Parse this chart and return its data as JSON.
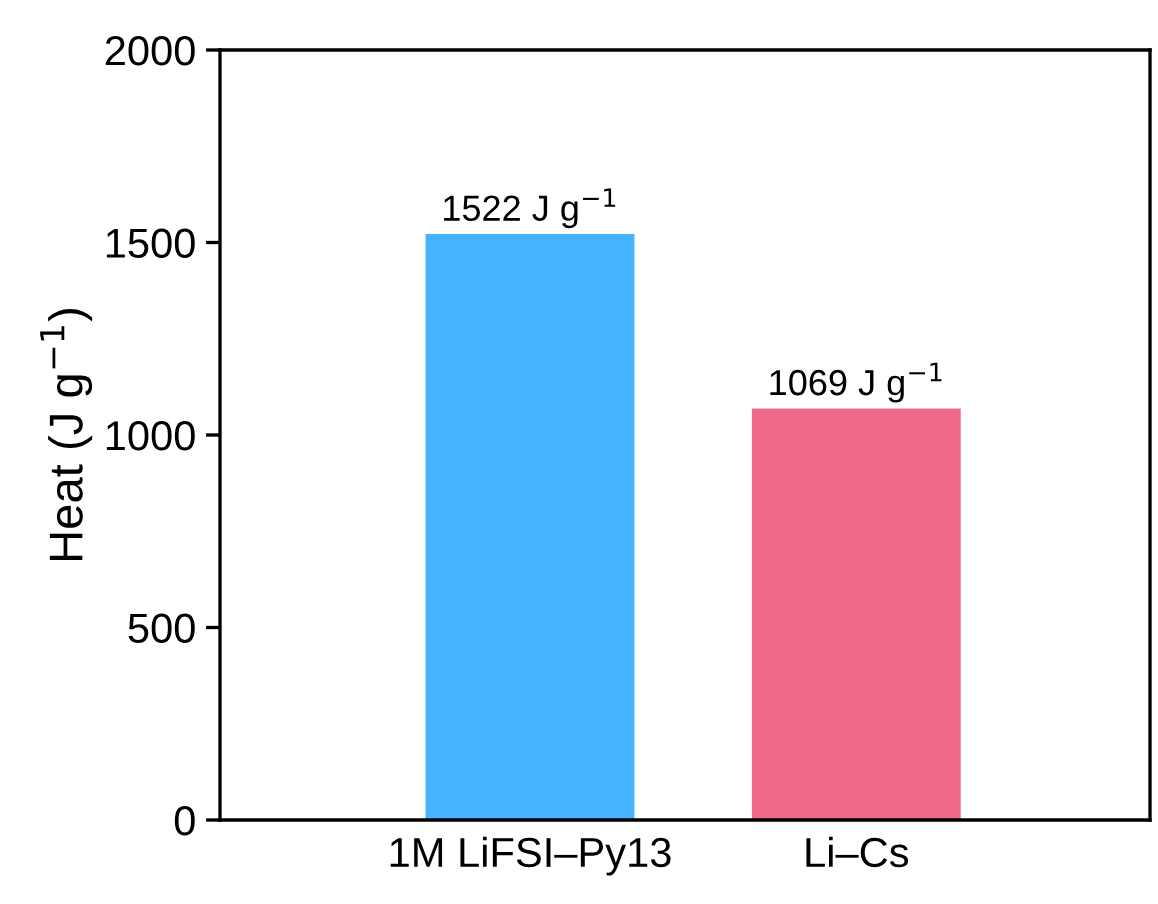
{
  "chart_data": {
    "type": "bar",
    "ylabel": "Heat (J g$^{−1}$)",
    "categories": [
      "1M LiFSI–Py13",
      "Li–Cs"
    ],
    "values": [
      1522,
      1069
    ],
    "colors": [
      "#45b3ff",
      "#f06a8a"
    ],
    "value_labels": [
      "1522 J g$^{−1}$",
      "1069 J g$^{−1}$"
    ],
    "ylim": [
      0,
      2000
    ],
    "yticks": [
      0,
      500,
      1000,
      1500,
      2000
    ],
    "grid": false,
    "legend": false
  }
}
